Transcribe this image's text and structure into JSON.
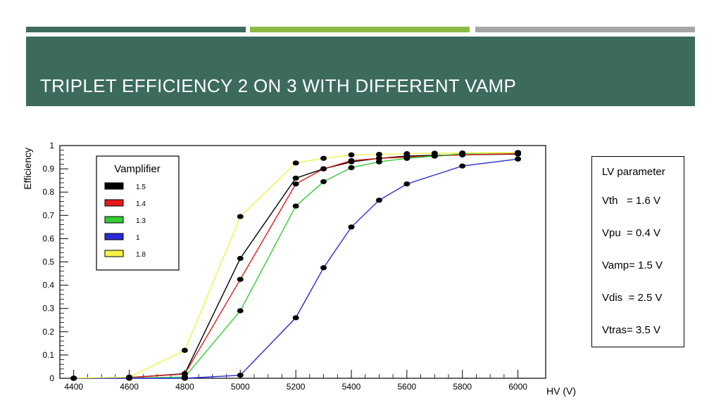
{
  "header": {
    "title": "TRIPLET EFFICIENCY 2 ON 3 WITH DIFFERENT VAMP",
    "accent_colors": [
      "#3c6b5e",
      "#8cba44",
      "#a6a6a6"
    ],
    "band_color": "#3c6b5e"
  },
  "lv_box": {
    "title": "LV parameter",
    "rows": [
      "Vth   = 1.6 V",
      "Vpu  = 0.4 V",
      "Vamp= 1.5 V",
      "Vdis  = 2.5 V",
      "Vtras= 3.5 V"
    ]
  },
  "chart_data": {
    "type": "line",
    "title": "",
    "xlabel": "HV (V)",
    "ylabel": "Efficiency",
    "xlim": [
      4350,
      6100
    ],
    "ylim": [
      0,
      1
    ],
    "x_ticks": [
      4400,
      4600,
      4800,
      5000,
      5200,
      5400,
      5600,
      5800,
      6000
    ],
    "y_ticks": [
      0,
      0.1,
      0.2,
      0.3,
      0.4,
      0.5,
      0.6,
      0.7,
      0.8,
      0.9,
      1
    ],
    "legend_title": "Vamplifier",
    "legend_position": "top-left",
    "series": [
      {
        "name": "1.5",
        "color": "#000000",
        "x": [
          4400,
          4600,
          4800,
          5000,
          5200,
          5300,
          5400,
          5500,
          5600,
          5700,
          5800,
          6000
        ],
        "y": [
          0.0,
          0.003,
          0.02,
          0.515,
          0.86,
          0.9,
          0.93,
          0.945,
          0.955,
          0.958,
          0.96,
          0.963
        ]
      },
      {
        "name": "1.4",
        "color": "#e31a1c",
        "x": [
          4400,
          4600,
          4800,
          5000,
          5200,
          5300,
          5400,
          5500,
          5600,
          5700,
          5800,
          6000
        ],
        "y": [
          0.0,
          0.003,
          0.018,
          0.425,
          0.835,
          0.9,
          0.935,
          0.945,
          0.95,
          0.955,
          0.96,
          0.965
        ]
      },
      {
        "name": "1.3",
        "color": "#33cc33",
        "x": [
          4400,
          4600,
          4800,
          5000,
          5200,
          5300,
          5400,
          5500,
          5600,
          5700,
          5800,
          6000
        ],
        "y": [
          0.0,
          0.001,
          0.005,
          0.29,
          0.74,
          0.845,
          0.905,
          0.93,
          0.945,
          0.955,
          0.965,
          0.97
        ]
      },
      {
        "name": "1",
        "color": "#2b2bd6",
        "x": [
          4400,
          4600,
          4800,
          5000,
          5200,
          5300,
          5400,
          5500,
          5600,
          5800,
          6000
        ],
        "y": [
          0.0,
          0.0,
          0.0,
          0.013,
          0.26,
          0.475,
          0.65,
          0.765,
          0.835,
          0.912,
          0.942
        ]
      },
      {
        "name": "1.8",
        "color": "#f2f24a",
        "x": [
          4400,
          4600,
          4800,
          5000,
          5200,
          5300,
          5400,
          5500,
          5600,
          5700,
          5800,
          6000
        ],
        "y": [
          0.001,
          0.005,
          0.12,
          0.695,
          0.925,
          0.945,
          0.96,
          0.962,
          0.965,
          0.967,
          0.968,
          0.97
        ]
      }
    ]
  }
}
